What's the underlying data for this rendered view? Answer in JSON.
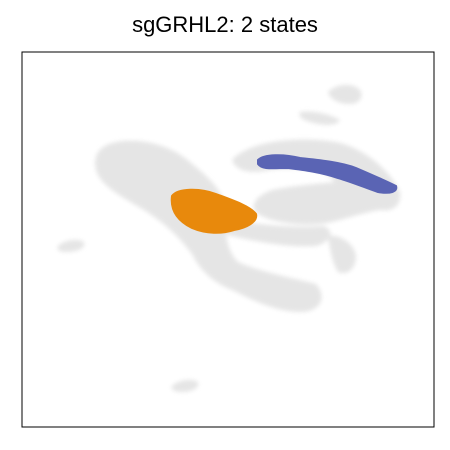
{
  "chart_data": {
    "type": "scatter",
    "title": "sgGRHL2: 2 states",
    "xlabel": "",
    "ylabel": "",
    "axes_ticks": "none",
    "grid": false,
    "legend": "none",
    "background_color": "#e4e4e4",
    "series": [
      {
        "color": "#e8890c",
        "state": 1
      },
      {
        "color": "#5a64b4",
        "state": 2
      }
    ]
  }
}
